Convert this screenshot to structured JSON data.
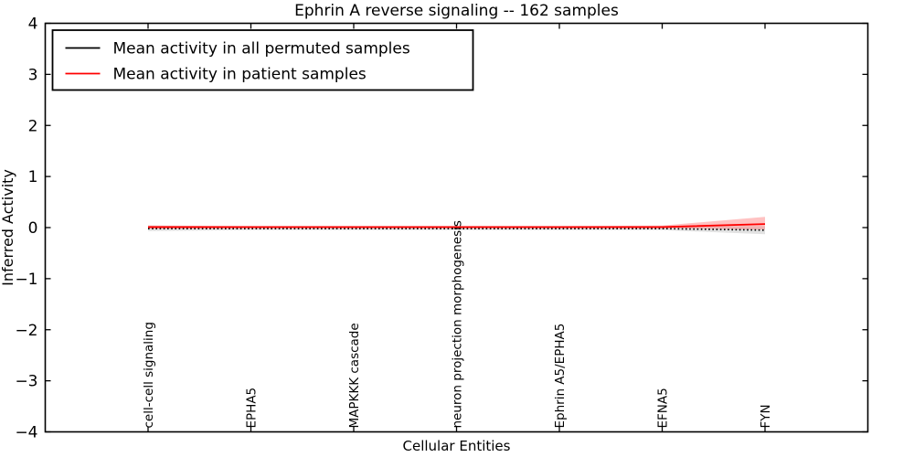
{
  "chart_data": {
    "type": "line",
    "title": "Ephrin A  reverse signaling -- 162 samples",
    "xlabel": "Cellular Entities",
    "ylabel": "Inferred Activity",
    "ylim": [
      -4,
      4
    ],
    "xlim": [
      0,
      8
    ],
    "yticks": [
      4,
      3,
      2,
      1,
      0,
      -1,
      -2,
      -3,
      -4
    ],
    "ytick_labels": [
      "4",
      "3",
      "2",
      "1",
      "0",
      "−1",
      "−2",
      "−3",
      "−4"
    ],
    "categories": [
      "cell-cell signaling",
      "EPHA5",
      "MAPKKK cascade",
      "neuron projection morphogenesis",
      "Ephrin A5/EPHA5",
      "EFNA5",
      "FYN"
    ],
    "x_positions": [
      1,
      2,
      3,
      4,
      5,
      6,
      7
    ],
    "grid": false,
    "legend_position": "upper-left",
    "series": [
      {
        "name": "Mean activity in all permuted samples",
        "color": "#000000",
        "line_style": "dotted",
        "values": [
          -0.02,
          -0.02,
          -0.02,
          -0.02,
          -0.02,
          -0.02,
          -0.05
        ],
        "band_upper": [
          0.04,
          0.02,
          0.02,
          0.02,
          0.02,
          0.02,
          0.03
        ],
        "band_lower": [
          -0.07,
          -0.05,
          -0.05,
          -0.05,
          -0.05,
          -0.05,
          -0.13
        ],
        "band_color": "#bfbfbf"
      },
      {
        "name": "Mean activity in patient samples",
        "color": "#ff0000",
        "line_style": "solid",
        "values": [
          0.01,
          0.01,
          0.01,
          0.01,
          0.01,
          0.01,
          0.07
        ],
        "band_upper": [
          0.04,
          0.03,
          0.03,
          0.03,
          0.03,
          0.04,
          0.21
        ],
        "band_lower": [
          -0.02,
          -0.01,
          -0.01,
          -0.01,
          -0.01,
          -0.01,
          -0.04
        ],
        "band_color": "#ff7777"
      }
    ]
  }
}
